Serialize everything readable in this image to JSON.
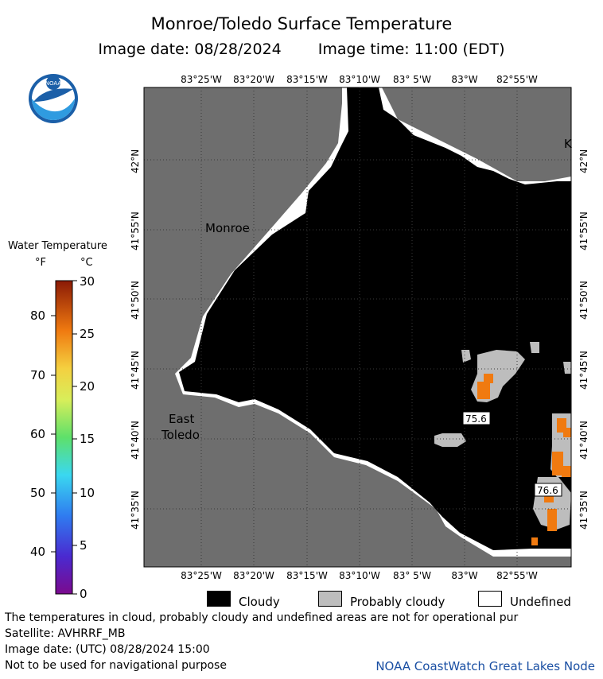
{
  "header": {
    "title": "Monroe/Toledo Surface Temperature",
    "image_date": "Image date: 08/28/2024",
    "image_time": "Image time: 11:00 (EDT)"
  },
  "logo": {
    "text": "NOAA",
    "icon": "noaa-logo"
  },
  "map": {
    "longitude_labels": [
      "83°25'W",
      "83°20'W",
      "83°15'W",
      "83°10'W",
      "83° 5'W",
      "83°W",
      "82°55'W"
    ],
    "latitude_labels": [
      "42°N",
      "41°55'N",
      "41°50'N",
      "41°45'N",
      "41°40'N",
      "41°35'N"
    ],
    "place_labels": [
      "Monroe",
      "East",
      "Toledo",
      "K"
    ],
    "temperature_labels": [
      "75.6",
      "76.6"
    ],
    "colors": {
      "land": "#6e6e6e",
      "cloudy": "#000000",
      "probably_cloudy": "#bdbdbd",
      "undefined": "#ffffff",
      "warm_water": "#f07a10"
    }
  },
  "legend": {
    "title": "Water Temperature",
    "unit_f": "°F",
    "unit_c": "°C",
    "f_ticks": [
      "80",
      "70",
      "60",
      "50",
      "40"
    ],
    "c_ticks": [
      "30",
      "25",
      "20",
      "15",
      "10",
      "5",
      "0"
    ],
    "range_c": [
      0,
      30
    ]
  },
  "key": {
    "cloudy": "Cloudy",
    "probably_cloudy": "Probably cloudy",
    "undefined": "Undefined"
  },
  "footer": {
    "disclaimer": "The temperatures in cloud, probably cloudy and undefined areas are not for operational pur",
    "satellite": "Satellite: AVHRRF_MB",
    "utc_date": "Image date: (UTC) 08/28/2024  15:00",
    "navigation": "Not to be used for navigational purpose",
    "credit": "NOAA CoastWatch Great Lakes Node"
  }
}
